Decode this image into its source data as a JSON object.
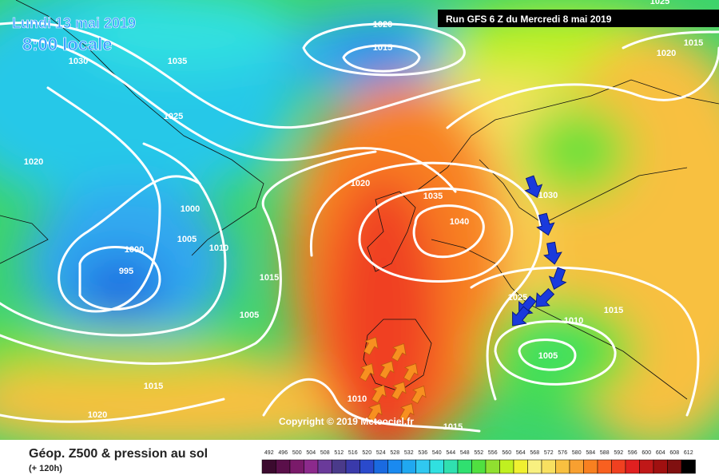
{
  "header": {
    "date": "Lundi 13 mai 2019",
    "time": "8:00 locale",
    "run": "Run GFS 6 Z du Mercredi 8 mai 2019"
  },
  "isobar_labels": [
    "1020",
    "1015",
    "1030",
    "1035",
    "1025",
    "1020",
    "1020",
    "1035",
    "1030",
    "1040",
    "1000",
    "1005",
    "1010",
    "1000",
    "995",
    "1015",
    "1005",
    "1025",
    "1015",
    "1010",
    "1005",
    "1015",
    "1020",
    "1010",
    "1015",
    "1020",
    "1015",
    "1025"
  ],
  "copyright": "Copyright © 2019 Meteociel.fr",
  "footer": {
    "title": "Géop. Z500 & pression au sol",
    "subtitle": "(+ 120h)"
  },
  "scale": {
    "labels": [
      492,
      496,
      500,
      504,
      508,
      512,
      516,
      520,
      524,
      528,
      532,
      536,
      540,
      544,
      548,
      552,
      556,
      560,
      564,
      568,
      572,
      576,
      580,
      584,
      588,
      592,
      596,
      600,
      604,
      608,
      612
    ],
    "colors": [
      "#3b0a2e",
      "#5a0f4a",
      "#7a1a6a",
      "#8c2a8c",
      "#6a3a9a",
      "#4a3a8a",
      "#3a3aaa",
      "#2a4acc",
      "#1a6ae0",
      "#1a8af0",
      "#20a8f0",
      "#30c8f0",
      "#30e0e0",
      "#30e0b0",
      "#30e070",
      "#50e040",
      "#90e030",
      "#c0f020",
      "#f0f030",
      "#f8f080",
      "#f8e060",
      "#f8c040",
      "#f8a030",
      "#f88020",
      "#f86020",
      "#f04020",
      "#e02020",
      "#c01818",
      "#a01010",
      "#801010",
      "#000000"
    ]
  }
}
